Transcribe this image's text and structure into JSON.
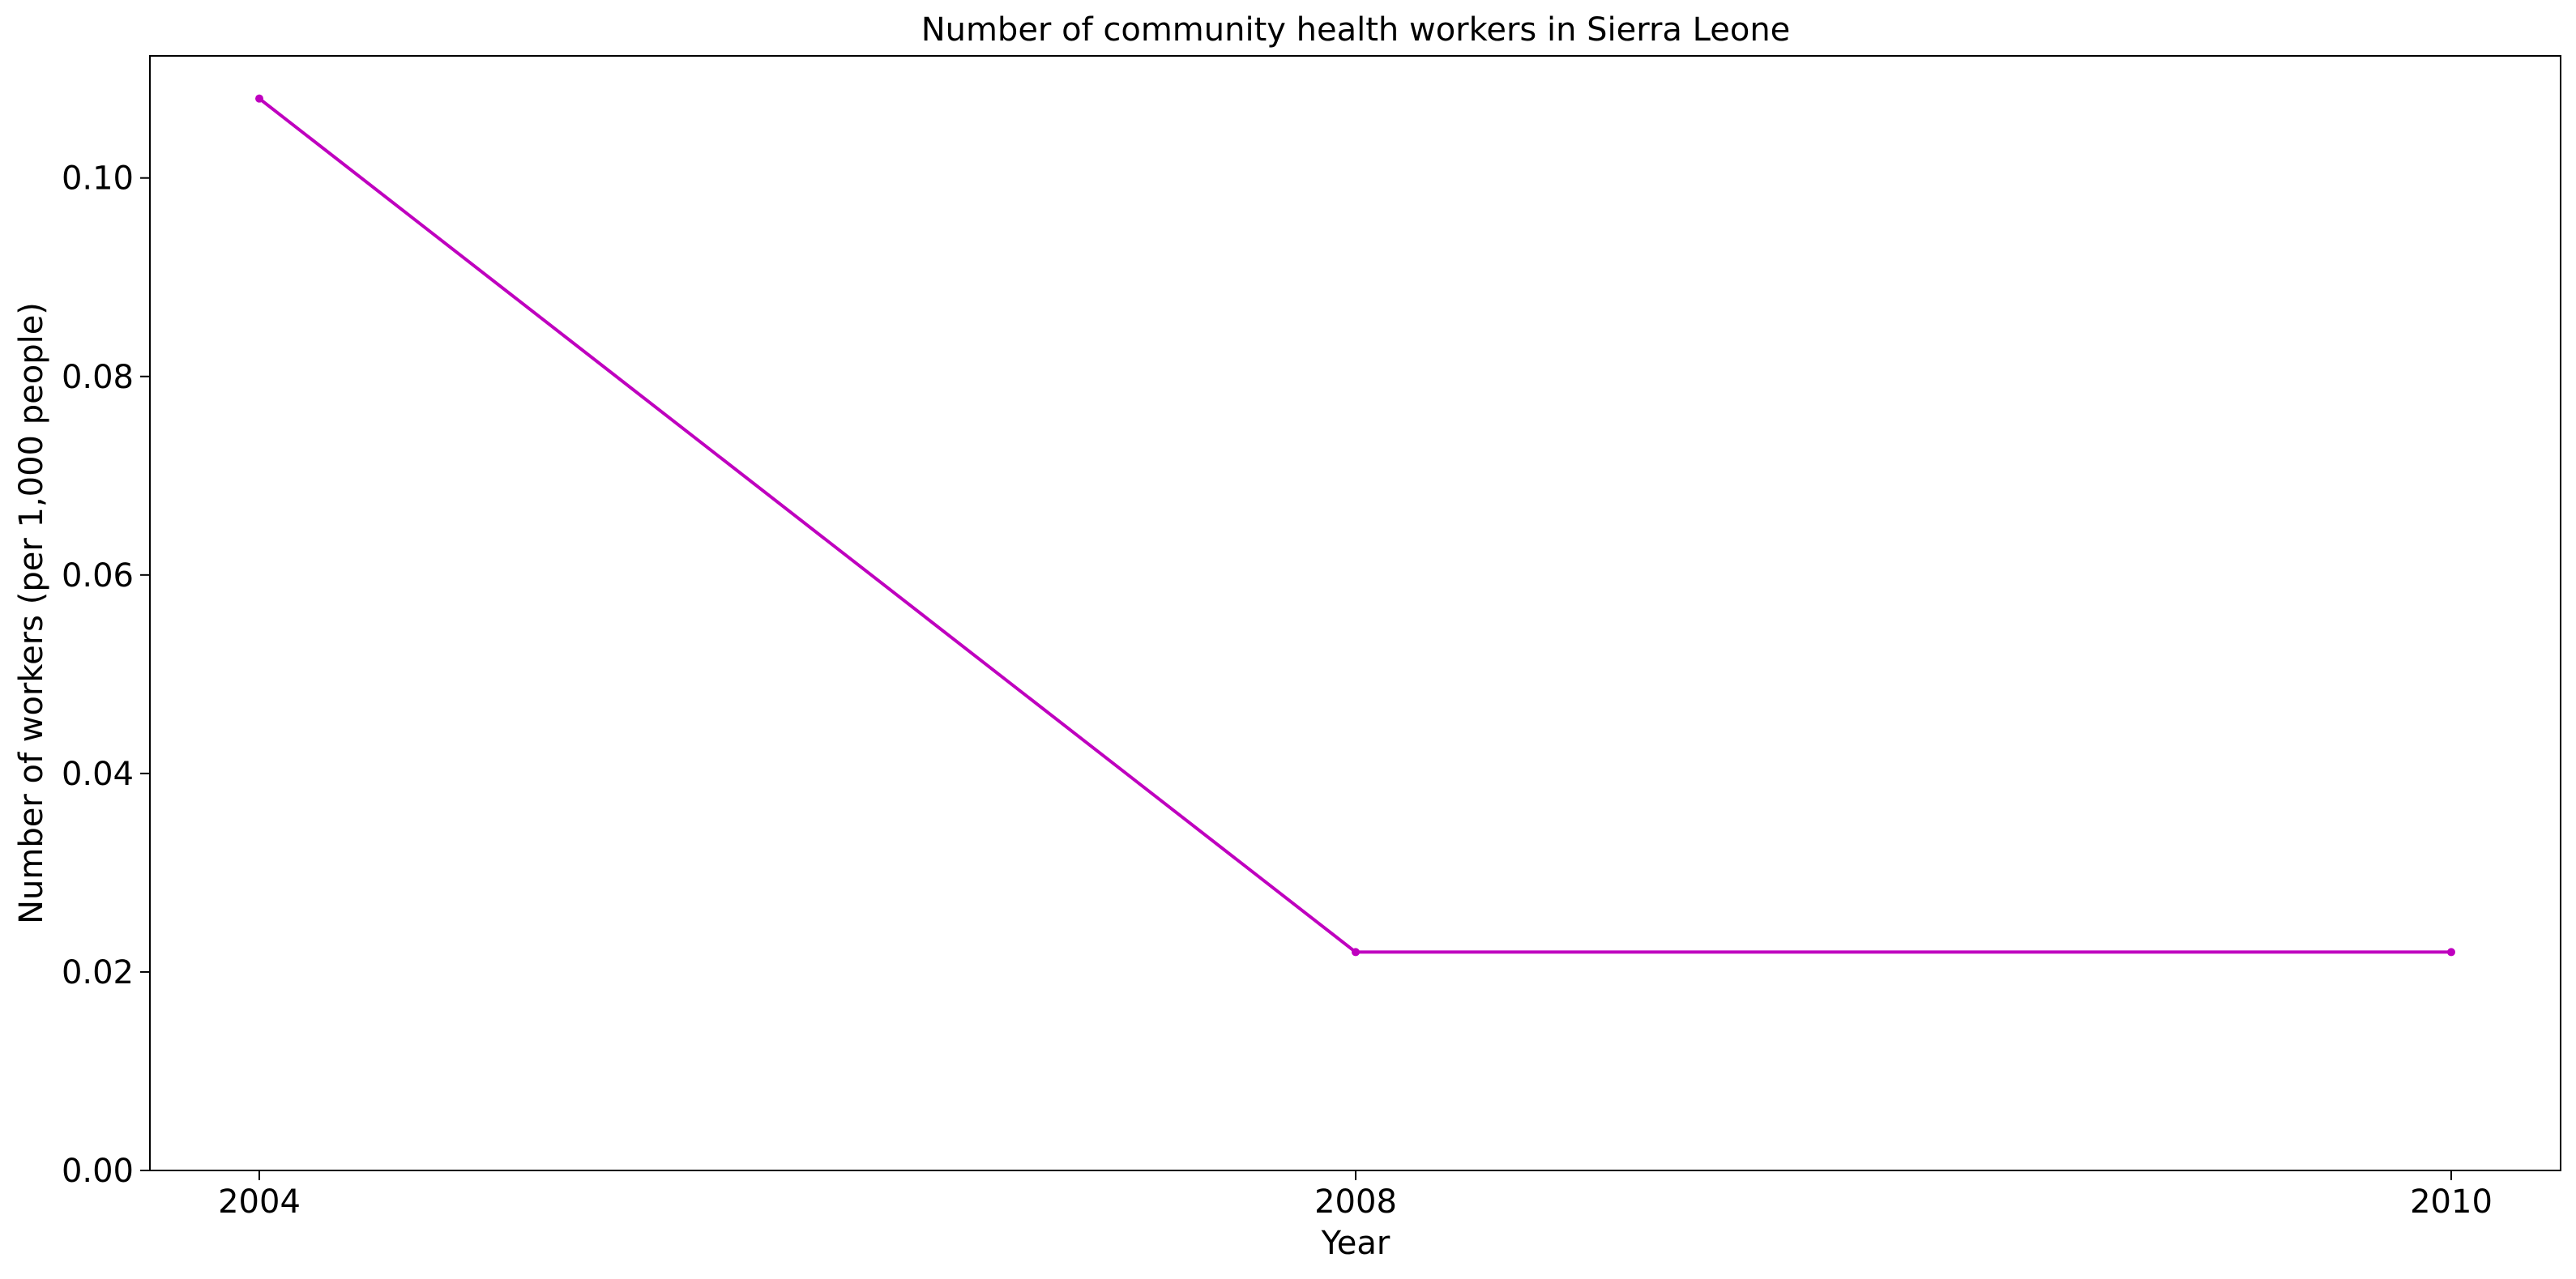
{
  "chart_data": {
    "type": "line",
    "title": "Number of community health workers in Sierra Leone",
    "xlabel": "Year",
    "ylabel": "Number of workers (per 1,000 people)",
    "categories": [
      "2004",
      "2008",
      "2010"
    ],
    "series": [
      {
        "values": [
          0.108,
          0.022,
          0.022
        ],
        "color": "#bf00bf"
      }
    ],
    "y_ticks": [
      "0.00",
      "0.02",
      "0.04",
      "0.06",
      "0.08",
      "0.10"
    ],
    "y_tick_values": [
      0,
      0.02,
      0.04,
      0.06,
      0.08,
      0.1
    ],
    "ylim": [
      0,
      0.1123
    ],
    "grid": false,
    "legend": "none",
    "markers": true
  }
}
